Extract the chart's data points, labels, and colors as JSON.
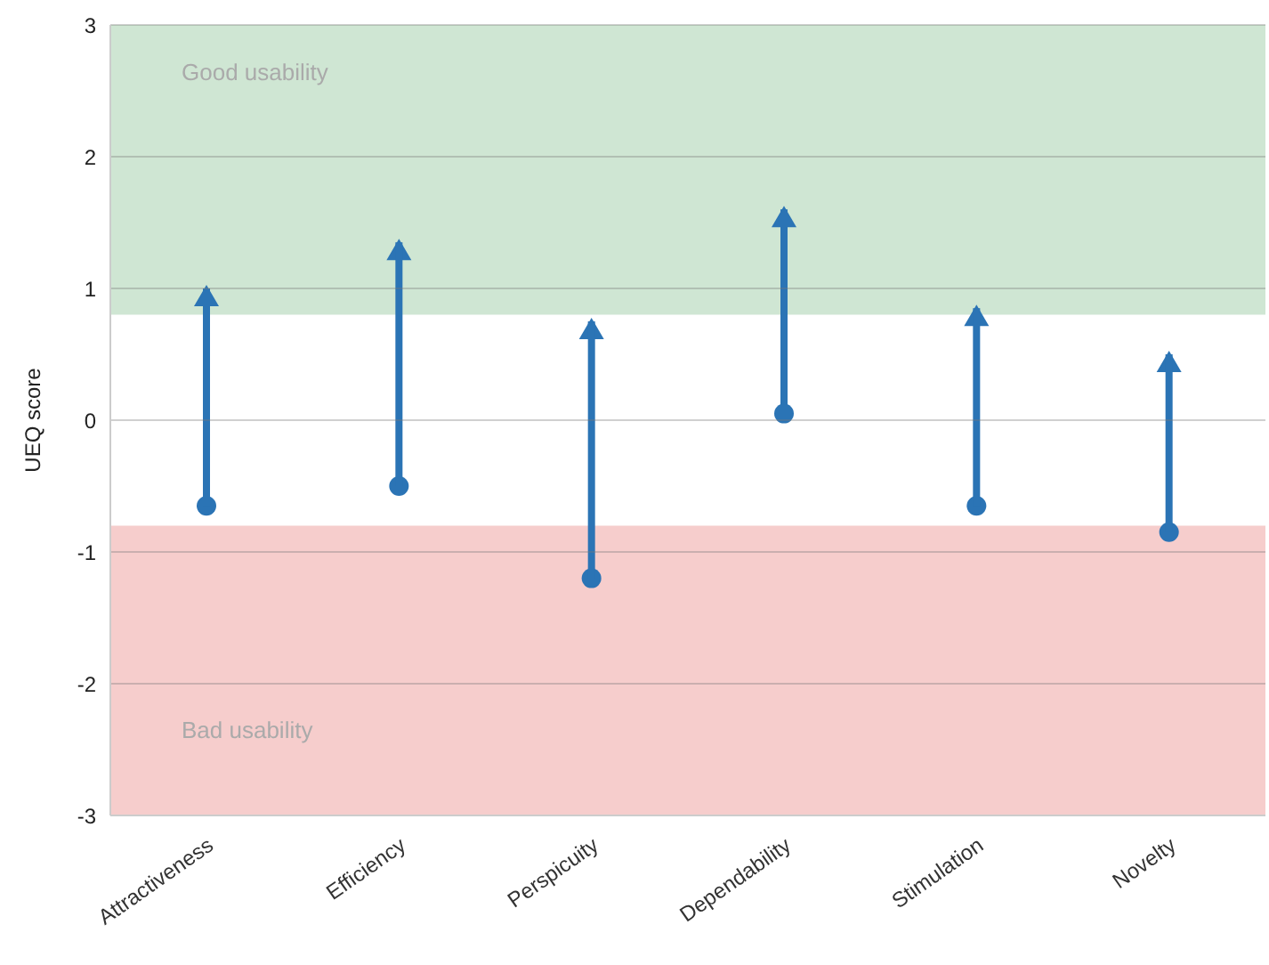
{
  "chart_data": {
    "type": "bar",
    "ylabel": "UEQ score",
    "categories": [
      "Attractiveness",
      "Efficiency",
      "Perspicuity",
      "Dependability",
      "Stimulation",
      "Novelty"
    ],
    "base": [
      -0.65,
      -0.5,
      -1.2,
      0.05,
      -0.65,
      -0.85
    ],
    "values": [
      1.65,
      1.85,
      1.95,
      1.55,
      1.5,
      1.35
    ],
    "color": "#2b74b5",
    "ylim": [
      -3,
      3
    ],
    "yticks": [
      -3,
      -2,
      -1,
      0,
      1,
      2,
      3
    ],
    "grid": "y",
    "bands": [
      {
        "axis": "y",
        "from": 0.8,
        "to": 3,
        "label": "Good usability",
        "color": "#cfe6d3"
      },
      {
        "axis": "y",
        "from": -3,
        "to": -0.8,
        "label": "Bad usability",
        "color": "#f6cdcc"
      }
    ]
  }
}
